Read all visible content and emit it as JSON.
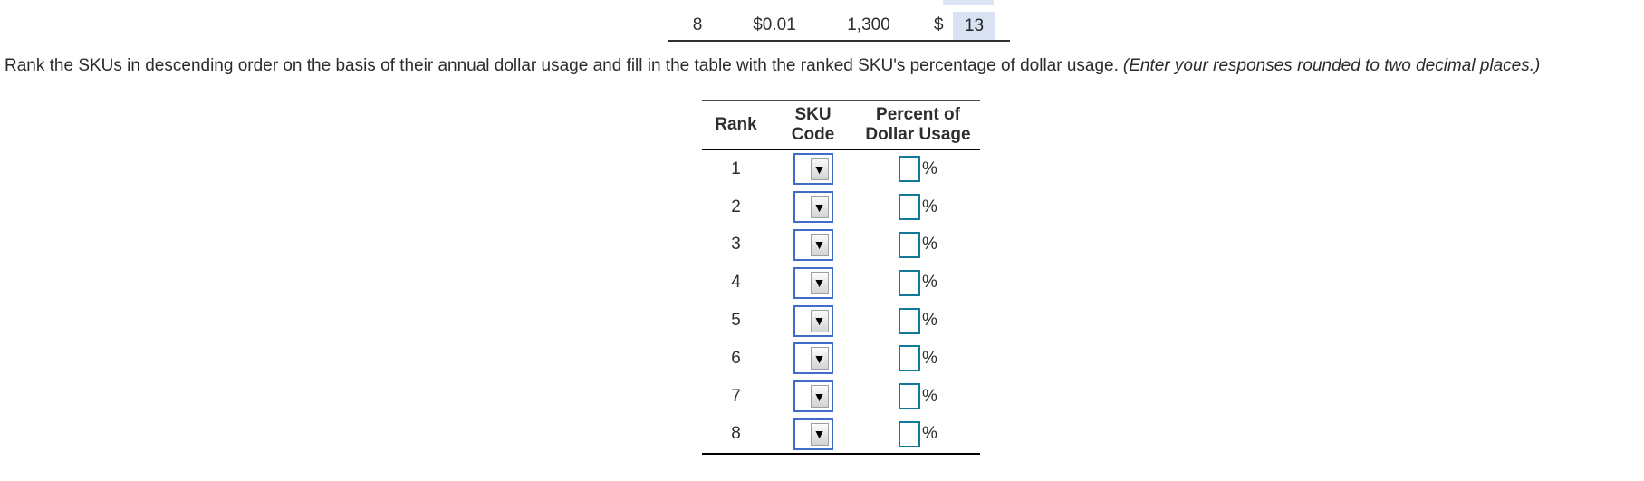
{
  "colors": {
    "select_border": "#3f6cc8",
    "input_border": "#0f7b99",
    "highlight_bg": "#d9e2f3",
    "table_line": "#000000",
    "text": "#2e2e2e"
  },
  "source_row": {
    "sku": "8",
    "unit_value": "$0.01",
    "annual_demand": "1,300",
    "dollar_sign": "$",
    "dollar_usage": "13"
  },
  "instruction": {
    "main": "Rank the SKUs in descending order on the basis of their annual dollar usage and fill in the table with the ranked SKU's percentage of dollar usage.",
    "note": "(Enter your responses rounded to two decimal places.)"
  },
  "ranking_table": {
    "header": {
      "rank": "Rank",
      "sku_line1": "SKU",
      "sku_line2": "Code",
      "percent_line1": "Percent of",
      "percent_line2": "Dollar Usage"
    },
    "dropdown_icon": "▼",
    "dropdown_value": "",
    "percent_value": "",
    "percent_suffix": "%",
    "rows": [
      {
        "rank": "1"
      },
      {
        "rank": "2"
      },
      {
        "rank": "3"
      },
      {
        "rank": "4"
      },
      {
        "rank": "5"
      },
      {
        "rank": "6"
      },
      {
        "rank": "7"
      },
      {
        "rank": "8"
      }
    ]
  }
}
